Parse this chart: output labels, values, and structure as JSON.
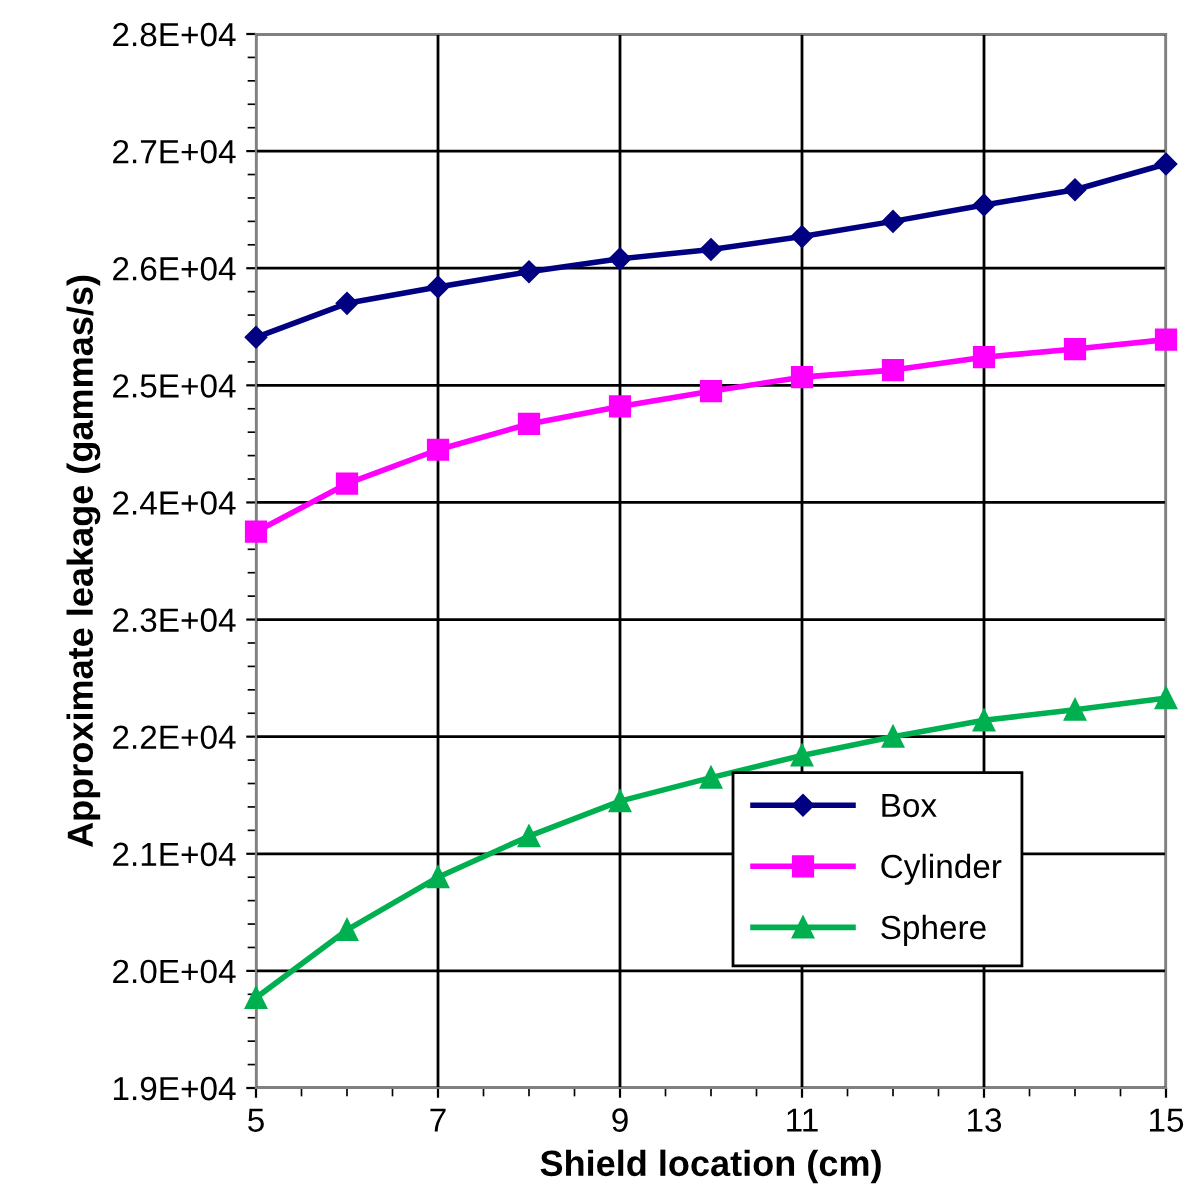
{
  "chart_data": {
    "type": "line",
    "xlabel": "Shield location (cm)",
    "ylabel": "Approximate leakage (gammas/s)",
    "x": [
      5,
      6,
      7,
      8,
      9,
      10,
      11,
      12,
      13,
      14,
      15
    ],
    "series": [
      {
        "name": "Box",
        "color": "#000080",
        "marker": "diamond",
        "values": [
          25410,
          25700,
          25840,
          25970,
          26080,
          26160,
          26270,
          26400,
          26540,
          26670,
          26890
        ]
      },
      {
        "name": "Cylinder",
        "color": "#ff00ff",
        "marker": "square",
        "values": [
          23750,
          24160,
          24450,
          24670,
          24820,
          24950,
          25070,
          25130,
          25240,
          25310,
          25390
        ]
      },
      {
        "name": "Sphere",
        "color": "#00b050",
        "marker": "triangle",
        "values": [
          19770,
          20350,
          20800,
          21150,
          21450,
          21650,
          21840,
          22000,
          22140,
          22230,
          22330
        ]
      }
    ],
    "xlim": [
      5,
      15
    ],
    "xticks": [
      5,
      7,
      9,
      11,
      13,
      15
    ],
    "ylim": [
      19000,
      28000
    ],
    "yticks": [
      {
        "value": 19000,
        "label": "1.9E+04"
      },
      {
        "value": 20000,
        "label": "2.0E+04"
      },
      {
        "value": 21000,
        "label": "2.1E+04"
      },
      {
        "value": 22000,
        "label": "2.2E+04"
      },
      {
        "value": 23000,
        "label": "2.3E+04"
      },
      {
        "value": 24000,
        "label": "2.4E+04"
      },
      {
        "value": 25000,
        "label": "2.5E+04"
      },
      {
        "value": 26000,
        "label": "2.6E+04"
      },
      {
        "value": 27000,
        "label": "2.7E+04"
      },
      {
        "value": 28000,
        "label": "2.8E+04"
      }
    ],
    "grid": true,
    "legend": "lower right",
    "line_style": "solid"
  }
}
